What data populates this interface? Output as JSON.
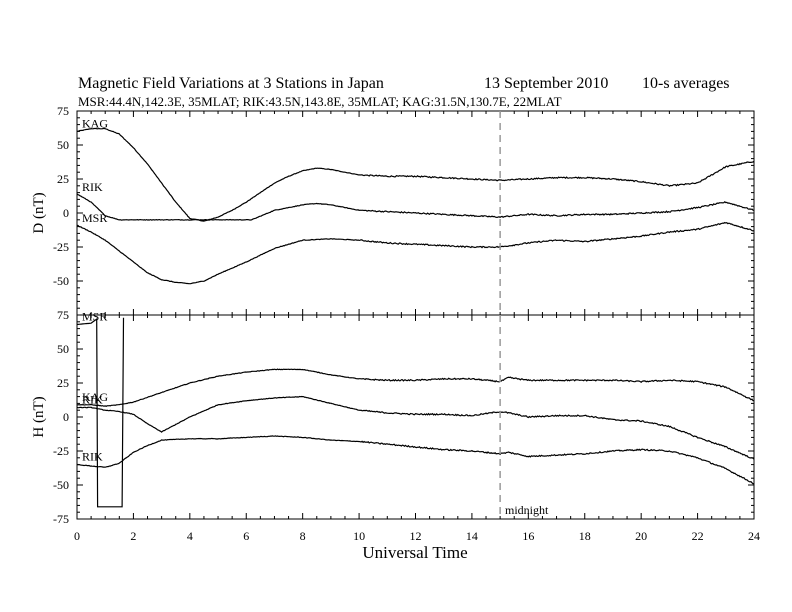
{
  "chart_data": {
    "type": "line",
    "title": "Magnetic Field Variations at 3 Stations in Japan",
    "date_label": "13 September 2010",
    "averaging_label": "10-s averages",
    "subtitle": "MSR:44.4N,142.3E, 35MLAT;  RIK:43.5N,143.8E, 35MLAT;  KAG:31.5N,130.7E, 22MLAT",
    "xlabel": "Universal Time",
    "xlim": [
      0,
      24
    ],
    "x_ticks": [
      "0",
      "2",
      "4",
      "6",
      "8",
      "10",
      "12",
      "14",
      "16",
      "18",
      "20",
      "22",
      "24"
    ],
    "marker": {
      "x": 15,
      "label": "midnight"
    },
    "panels": [
      {
        "ylabel": "D (nT)",
        "ylim": [
          -75,
          75
        ],
        "y_ticks": [
          "-75",
          "-50",
          "-25",
          "0",
          "25",
          "50",
          "75"
        ],
        "series": [
          {
            "name": "KAG",
            "x": [
              0,
              0.5,
              1,
              1.5,
              2,
              2.5,
              3,
              3.5,
              4,
              4.5,
              5,
              5.5,
              6,
              6.5,
              7,
              7.5,
              8,
              8.5,
              9,
              9.5,
              10,
              11,
              12,
              13,
              14,
              15,
              16,
              17,
              18,
              19,
              20,
              21,
              22,
              22.5,
              23,
              23.5,
              24
            ],
            "values": [
              60,
              62,
              62,
              58,
              48,
              36,
              22,
              8,
              -4,
              -6,
              -3,
              2,
              8,
              15,
              22,
              27,
              31,
              33,
              32,
              30,
              28,
              27,
              27,
              26,
              25,
              24,
              25,
              26,
              26,
              25,
              23,
              20,
              22,
              28,
              34,
              36,
              38
            ]
          },
          {
            "name": "RIK",
            "x": [
              0,
              0.5,
              1,
              1.5,
              2,
              3,
              4,
              5,
              6,
              6.2,
              7,
              8,
              8.5,
              9,
              10,
              11,
              12,
              13,
              14,
              15,
              16,
              17,
              18,
              19,
              20,
              21,
              22,
              23,
              24
            ],
            "values": [
              14,
              8,
              -2,
              -5,
              -5,
              -5,
              -5,
              -5,
              -5,
              -5,
              2,
              6,
              7,
              6,
              2,
              1,
              0,
              -1,
              -2,
              -3,
              -1,
              -2,
              -1,
              -1,
              0,
              1,
              4,
              8,
              2
            ]
          },
          {
            "name": "MSR",
            "x": [
              0,
              0.5,
              1,
              1.5,
              2,
              2.5,
              3,
              3.5,
              4,
              4.5,
              5,
              6,
              7,
              8,
              9,
              10,
              11,
              12,
              13,
              14,
              15,
              16,
              17,
              18,
              19,
              20,
              21,
              22,
              23,
              24
            ],
            "values": [
              -9,
              -14,
              -20,
              -28,
              -36,
              -44,
              -49,
              -51,
              -52,
              -50,
              -45,
              -36,
              -26,
              -20,
              -19,
              -20,
              -22,
              -23,
              -24,
              -25,
              -25,
              -22,
              -20,
              -21,
              -19,
              -17,
              -14,
              -12,
              -7,
              -13
            ]
          }
        ]
      },
      {
        "ylabel": "H (nT)",
        "ylim": [
          -75,
          75
        ],
        "y_ticks": [
          "-75",
          "-50",
          "-25",
          "0",
          "25",
          "50",
          "75"
        ],
        "series": [
          {
            "name": "MSR",
            "x": [
              0,
              0.5,
              0.7,
              0.73,
              1.6,
              1.65
            ],
            "values": [
              68,
              69,
              72,
              -66,
              -66,
              73
            ]
          },
          {
            "name": "KAG",
            "x": [
              0,
              0.5,
              1,
              1.5,
              2,
              3,
              4,
              5,
              6,
              7,
              8,
              9,
              10,
              11,
              12,
              13,
              14,
              15,
              15.3,
              16,
              17,
              18,
              19,
              20,
              21,
              22,
              23,
              24
            ],
            "values": [
              9,
              9,
              8,
              9,
              11,
              18,
              25,
              30,
              33,
              35,
              35,
              31,
              28,
              27,
              27,
              28,
              28,
              26,
              29,
              27,
              27,
              27,
              27,
              26,
              27,
              26,
              22,
              12
            ]
          },
          {
            "name": "RIK",
            "x": [
              0,
              0.5,
              1,
              1.5,
              2,
              2.5,
              3,
              4,
              5,
              6,
              7,
              8,
              9,
              10,
              11,
              12,
              13,
              14,
              15,
              15.3,
              16,
              17,
              18,
              19,
              20,
              21,
              22,
              23,
              24
            ],
            "values": [
              7,
              7,
              5,
              4,
              2,
              -5,
              -11,
              0,
              9,
              12,
              14,
              15,
              10,
              5,
              3,
              2,
              2,
              1,
              4,
              3,
              0,
              1,
              1,
              -2,
              -3,
              -7,
              -15,
              -22,
              -31
            ]
          },
          {
            "name": "RIK",
            "x": [
              0,
              0.5,
              1,
              1.5,
              2,
              2.5,
              3,
              4,
              5,
              6,
              7,
              8,
              9,
              10,
              11,
              12,
              13,
              14,
              15,
              15.3,
              16,
              17,
              18,
              19,
              20,
              21,
              22,
              23,
              24
            ],
            "values": [
              -35,
              -36,
              -37,
              -34,
              -26,
              -21,
              -17,
              -16,
              -16,
              -15,
              -14,
              -15,
              -17,
              -18,
              -20,
              -22,
              -24,
              -25,
              -27,
              -26,
              -29,
              -28,
              -27,
              -25,
              -24,
              -25,
              -30,
              -38,
              -49
            ]
          }
        ]
      }
    ]
  }
}
